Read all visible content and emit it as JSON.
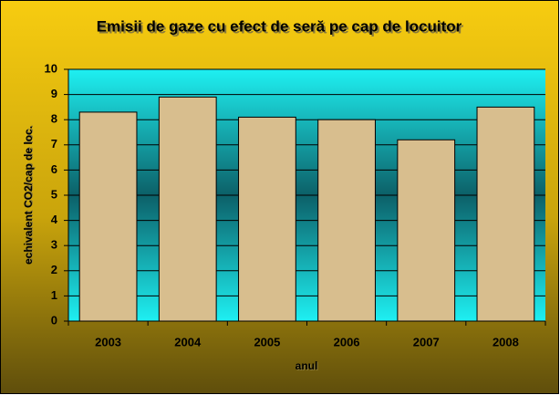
{
  "chart_data": {
    "type": "bar",
    "title": "Emisii de gaze cu efect de seră pe cap de locuitor",
    "x_label": "anul",
    "y_label": "echivalent CO2/cap de loc.",
    "categories": [
      "2003",
      "2004",
      "2005",
      "2006",
      "2007",
      "2008"
    ],
    "values": [
      8.3,
      8.9,
      8.1,
      8.0,
      7.2,
      8.5
    ],
    "color": "#d8be8e",
    "ylim": [
      0,
      10
    ],
    "yticks": [
      0,
      1,
      2,
      3,
      4,
      5,
      6,
      7,
      8,
      9,
      10
    ],
    "grid": true
  }
}
